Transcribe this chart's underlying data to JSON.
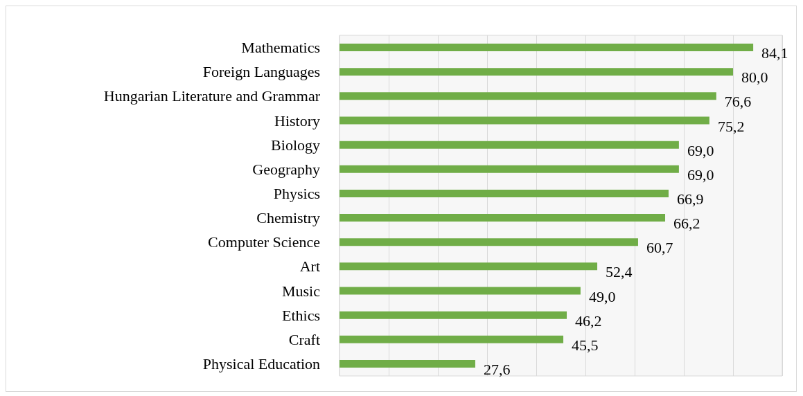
{
  "chart_data": {
    "type": "bar",
    "orientation": "horizontal",
    "categories": [
      "Mathematics",
      "Foreign Languages",
      "Hungarian Literature and Grammar",
      "History",
      "Biology",
      "Geography",
      "Physics",
      "Chemistry",
      "Computer Science",
      "Art",
      "Music",
      "Ethics",
      "Craft",
      "Physical Education"
    ],
    "values": [
      84.1,
      80.0,
      76.6,
      75.2,
      69.0,
      69.0,
      66.9,
      66.2,
      60.7,
      52.4,
      49.0,
      46.2,
      45.5,
      27.6
    ],
    "value_labels": [
      "84,1",
      "80,0",
      "76,6",
      "75,2",
      "69,0",
      "69,0",
      "66,9",
      "66,2",
      "60,7",
      "52,4",
      "49,0",
      "46,2",
      "45,5",
      "27,6"
    ],
    "color": "#70ad47",
    "xlim": [
      0,
      90
    ],
    "xticks": [
      {
        "value": 0,
        "label": null
      },
      {
        "value": 10,
        "label": null
      },
      {
        "value": 20,
        "label": null
      },
      {
        "value": 30,
        "label": null
      },
      {
        "value": 40,
        "label": null
      },
      {
        "value": 50,
        "label": null
      },
      {
        "value": 60,
        "label": null
      },
      {
        "value": 70,
        "label": null
      },
      {
        "value": 80,
        "label": null
      },
      {
        "value": 90,
        "label": null
      }
    ],
    "grid": "x",
    "tick_labels": "y"
  }
}
